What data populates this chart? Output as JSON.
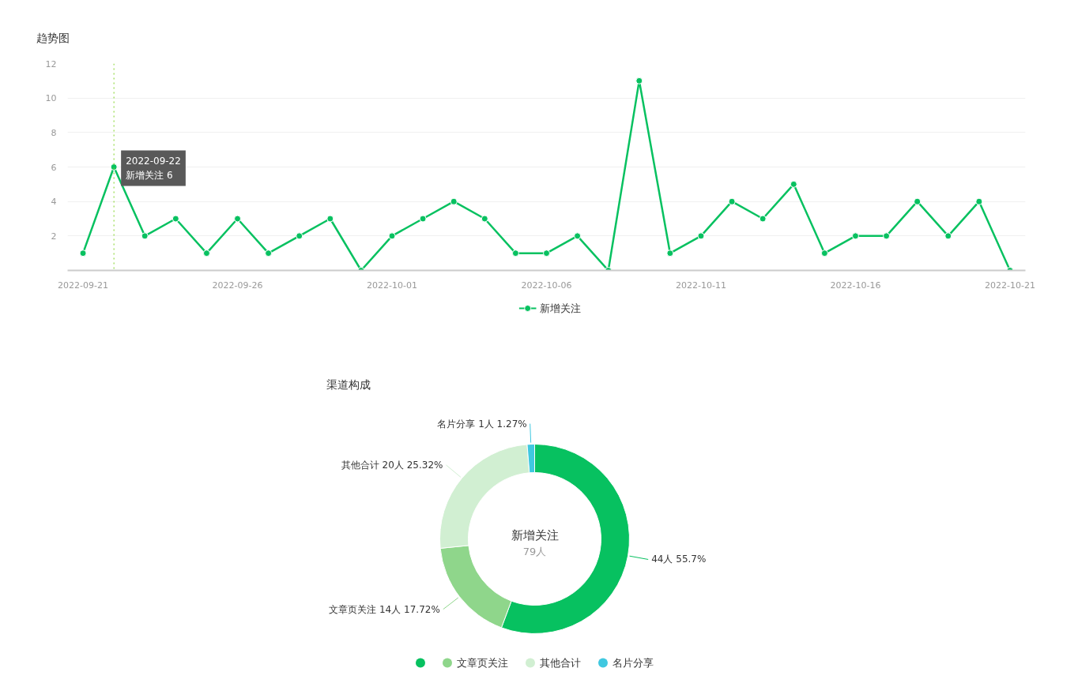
{
  "chart_data": [
    {
      "type": "line",
      "title": "趋势图",
      "x": [
        "2022-09-21",
        "2022-09-22",
        "2022-09-23",
        "2022-09-24",
        "2022-09-25",
        "2022-09-26",
        "2022-09-27",
        "2022-09-28",
        "2022-09-29",
        "2022-09-30",
        "2022-10-01",
        "2022-10-02",
        "2022-10-03",
        "2022-10-04",
        "2022-10-05",
        "2022-10-06",
        "2022-10-07",
        "2022-10-08",
        "2022-10-09",
        "2022-10-10",
        "2022-10-11",
        "2022-10-12",
        "2022-10-13",
        "2022-10-14",
        "2022-10-15",
        "2022-10-16",
        "2022-10-17",
        "2022-10-18",
        "2022-10-19",
        "2022-10-20",
        "2022-10-21"
      ],
      "series": [
        {
          "name": "新增关注",
          "color": "#07c160",
          "values": [
            1,
            6,
            2,
            3,
            1,
            3,
            1,
            2,
            3,
            0,
            2,
            3,
            4,
            3,
            1,
            1,
            2,
            0,
            11,
            1,
            2,
            4,
            3,
            5,
            1,
            2,
            2,
            4,
            2,
            4,
            0
          ]
        }
      ],
      "xlim": [
        "2022-09-20T12:00",
        "2022-10-21T12:00"
      ],
      "xticks": [
        "2022-09-21",
        "2022-09-26",
        "2022-10-01",
        "2022-10-06",
        "2022-10-11",
        "2022-10-16",
        "2022-10-21"
      ],
      "ylim": [
        0,
        12
      ],
      "yticks": [
        2,
        4,
        6,
        8,
        10,
        12
      ],
      "grid": "y",
      "legend": "bottom",
      "marker": "circle",
      "line_style": "solid",
      "ref_lines": [
        {
          "axis": "x",
          "value": "2022-09-22",
          "color": "#7ed321",
          "line_style": "dotted"
        }
      ],
      "annotations": [
        {
          "text": "2022-09-22\n新增关注 6",
          "x": "2022-09-22",
          "y": 6
        }
      ]
    },
    {
      "type": "donut",
      "title": "渠道构成",
      "categories": [
        null,
        "文章页关注",
        "其他合计",
        "名片分享"
      ],
      "values": [
        44,
        14,
        20,
        1
      ],
      "colors": [
        "#07c160",
        "#8fd68b",
        "#d1efd2",
        "#40c8e0"
      ],
      "value_labels": [
        "44人 55.7%",
        "14人 17.72%",
        "20人 25.32%",
        "1人 1.27%"
      ],
      "annotations": [
        "新增关注",
        "79人"
      ],
      "legend": "bottom"
    }
  ]
}
